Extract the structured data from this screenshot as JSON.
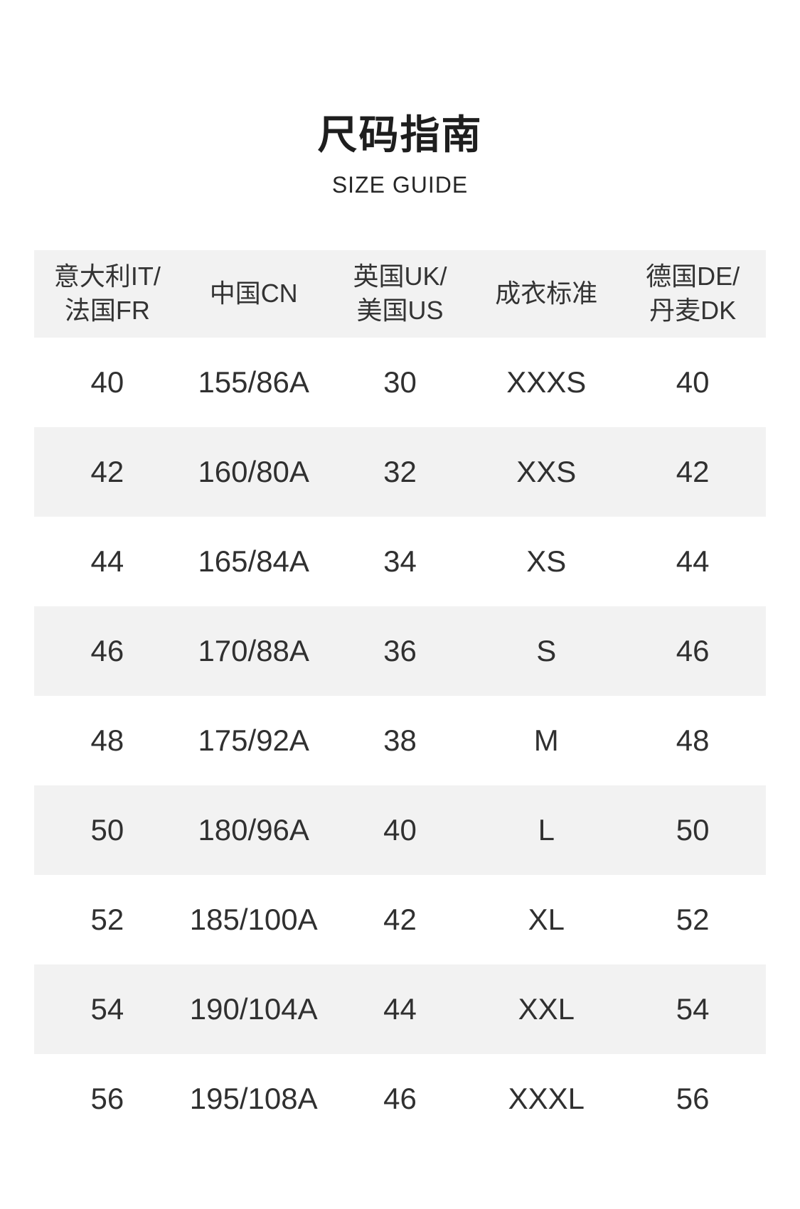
{
  "page": {
    "title": "尺码指南",
    "subtitle": "SIZE GUIDE"
  },
  "table": {
    "headers": [
      [
        "意大利IT/",
        "法国FR"
      ],
      [
        "中国CN"
      ],
      [
        "英国UK/",
        "美国US"
      ],
      [
        "成衣标准"
      ],
      [
        "德国DE/",
        "丹麦DK"
      ]
    ],
    "rows": [
      [
        "40",
        "155/86A",
        "30",
        "XXXS",
        "40"
      ],
      [
        "42",
        "160/80A",
        "32",
        "XXS",
        "42"
      ],
      [
        "44",
        "165/84A",
        "34",
        "XS",
        "44"
      ],
      [
        "46",
        "170/88A",
        "36",
        "S",
        "46"
      ],
      [
        "48",
        "175/92A",
        "38",
        "M",
        "48"
      ],
      [
        "50",
        "180/96A",
        "40",
        "L",
        "50"
      ],
      [
        "52",
        "185/100A",
        "42",
        "XL",
        "52"
      ],
      [
        "54",
        "190/104A",
        "44",
        "XXL",
        "54"
      ],
      [
        "56",
        "195/108A",
        "46",
        "XXXL",
        "56"
      ]
    ]
  },
  "colors": {
    "stripe_bg": "#f2f2f2",
    "row_bg": "#ffffff",
    "text": "#303030",
    "title_text": "#1e1e1e"
  }
}
